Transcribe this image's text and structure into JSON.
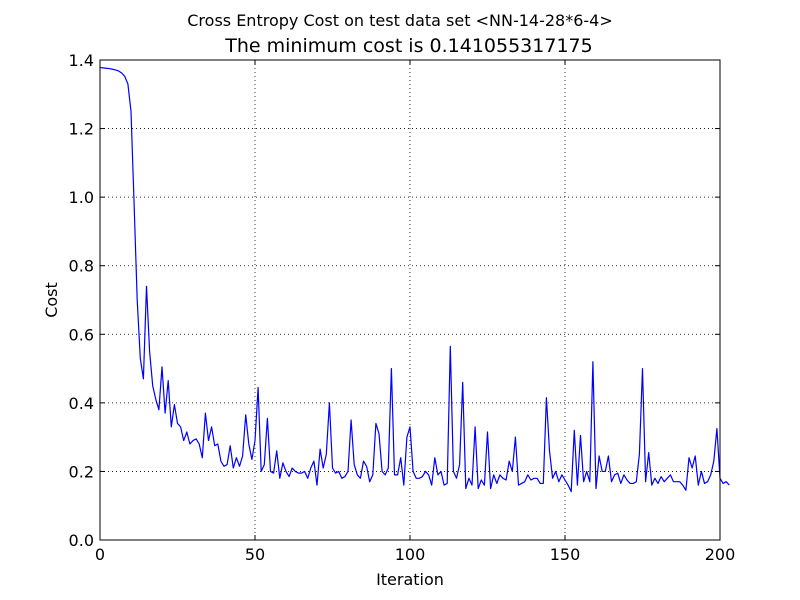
{
  "chart_data": {
    "type": "line",
    "suptitle": "Cross Entropy Cost on test data set <NN-14-28*6-4>",
    "title": "The minimum cost is 0.141055317175",
    "xlabel": "Iteration",
    "ylabel": "Cost",
    "xlim": [
      0,
      200
    ],
    "ylim": [
      0.0,
      1.4
    ],
    "x_ticks": [
      0,
      50,
      100,
      150,
      200
    ],
    "x_tick_labels": [
      "0",
      "50",
      "100",
      "150",
      "200"
    ],
    "y_ticks": [
      0.0,
      0.2,
      0.4,
      0.6,
      0.8,
      1.0,
      1.2,
      1.4
    ],
    "y_tick_labels": [
      "0.0",
      "0.2",
      "0.4",
      "0.6",
      "0.8",
      "1.0",
      "1.2",
      "1.4"
    ],
    "grid": true,
    "series": [
      {
        "color": "#0000ff",
        "x_start": 0,
        "x_step": 1,
        "values": [
          1.378,
          1.377,
          1.376,
          1.375,
          1.373,
          1.371,
          1.368,
          1.362,
          1.352,
          1.33,
          1.25,
          0.98,
          0.7,
          0.53,
          0.47,
          0.74,
          0.55,
          0.45,
          0.41,
          0.38,
          0.505,
          0.37,
          0.465,
          0.33,
          0.395,
          0.34,
          0.33,
          0.29,
          0.315,
          0.28,
          0.29,
          0.295,
          0.28,
          0.24,
          0.37,
          0.29,
          0.33,
          0.275,
          0.28,
          0.23,
          0.215,
          0.22,
          0.275,
          0.21,
          0.24,
          0.215,
          0.245,
          0.365,
          0.28,
          0.235,
          0.29,
          0.445,
          0.2,
          0.22,
          0.355,
          0.2,
          0.195,
          0.26,
          0.18,
          0.225,
          0.2,
          0.185,
          0.21,
          0.2,
          0.195,
          0.195,
          0.2,
          0.18,
          0.21,
          0.23,
          0.16,
          0.265,
          0.21,
          0.25,
          0.4,
          0.21,
          0.195,
          0.2,
          0.18,
          0.185,
          0.2,
          0.35,
          0.22,
          0.19,
          0.18,
          0.23,
          0.215,
          0.17,
          0.19,
          0.34,
          0.31,
          0.2,
          0.19,
          0.21,
          0.5,
          0.19,
          0.19,
          0.24,
          0.16,
          0.3,
          0.33,
          0.2,
          0.18,
          0.18,
          0.185,
          0.2,
          0.19,
          0.16,
          0.24,
          0.19,
          0.2,
          0.16,
          0.165,
          0.565,
          0.2,
          0.18,
          0.22,
          0.46,
          0.15,
          0.18,
          0.16,
          0.33,
          0.15,
          0.175,
          0.16,
          0.315,
          0.15,
          0.19,
          0.165,
          0.19,
          0.18,
          0.175,
          0.23,
          0.2,
          0.3,
          0.16,
          0.165,
          0.17,
          0.19,
          0.175,
          0.18,
          0.18,
          0.165,
          0.165,
          0.415,
          0.26,
          0.18,
          0.2,
          0.17,
          0.19,
          0.175,
          0.16,
          0.141,
          0.32,
          0.16,
          0.305,
          0.17,
          0.2,
          0.17,
          0.52,
          0.15,
          0.245,
          0.2,
          0.2,
          0.245,
          0.17,
          0.19,
          0.195,
          0.165,
          0.19,
          0.175,
          0.165,
          0.165,
          0.17,
          0.25,
          0.5,
          0.17,
          0.255,
          0.16,
          0.18,
          0.165,
          0.185,
          0.17,
          0.18,
          0.19,
          0.17,
          0.17,
          0.17,
          0.16,
          0.145,
          0.24,
          0.21,
          0.245,
          0.16,
          0.2,
          0.165,
          0.17,
          0.19,
          0.23,
          0.325,
          0.18,
          0.165,
          0.17,
          0.16
        ]
      }
    ]
  }
}
